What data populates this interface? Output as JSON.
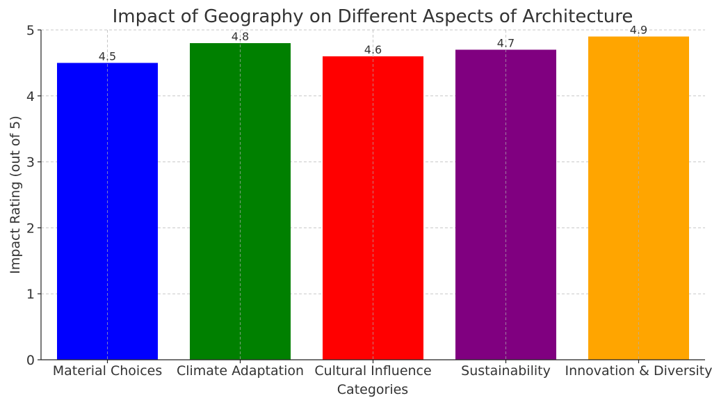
{
  "chart_data": {
    "type": "bar",
    "title": "Impact of Geography on Different Aspects of Architecture",
    "xlabel": "Categories",
    "ylabel": "Impact Rating (out of 5)",
    "categories": [
      "Material Choices",
      "Climate Adaptation",
      "Cultural Influence",
      "Sustainability",
      "Innovation & Diversity"
    ],
    "values": [
      4.5,
      4.8,
      4.6,
      4.7,
      4.9
    ],
    "value_labels": [
      "4.5",
      "4.8",
      "4.6",
      "4.7",
      "4.9"
    ],
    "colors": [
      "#0000ff",
      "#008000",
      "#ff0000",
      "#800080",
      "#ffa500"
    ],
    "ylim": [
      0,
      5
    ],
    "yticks": [
      0,
      1,
      2,
      3,
      4,
      5
    ],
    "grid": true
  }
}
